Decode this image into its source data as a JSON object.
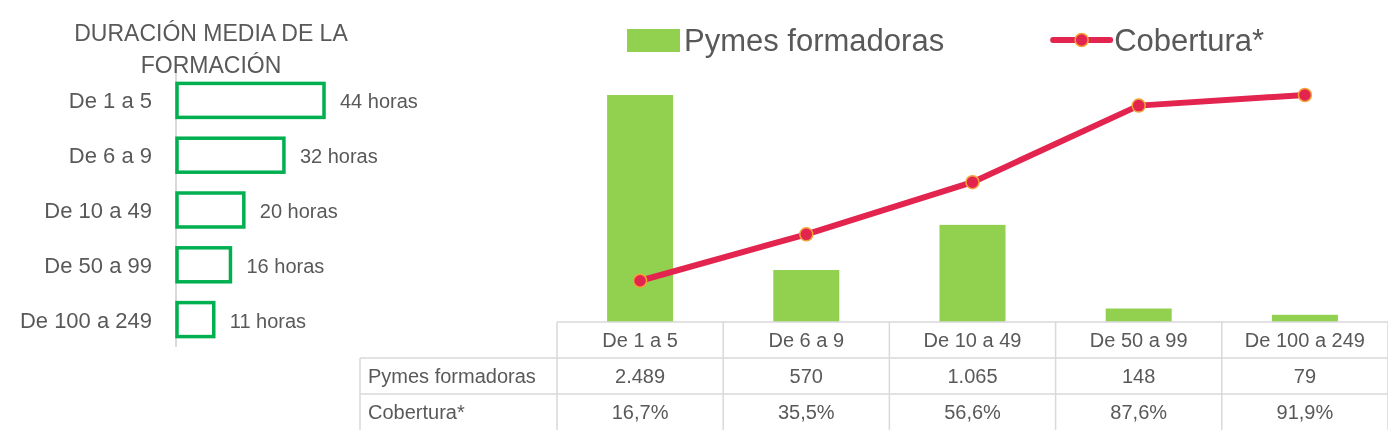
{
  "chart_data": [
    {
      "type": "bar",
      "orientation": "horizontal",
      "title": "DURACIÓN MEDIA DE LA FORMACIÓN",
      "categories": [
        "De 1 a 5",
        "De 6 a 9",
        "De 10 a 49",
        "De 50 a 99",
        "De 100 a 249"
      ],
      "values": [
        44,
        32,
        20,
        16,
        11
      ],
      "value_labels": [
        "44 horas",
        "32 horas",
        "20 horas",
        "16 horas",
        "11 horas"
      ],
      "color": "#00b050"
    },
    {
      "type": "bar",
      "categories": [
        "De 1 a 5",
        "De 6 a 9",
        "De 10 a 49",
        "De 50 a 99",
        "De 100 a 249"
      ],
      "series": [
        {
          "name": "Pymes formadoras",
          "type": "bar",
          "color": "#92d050",
          "values": [
            2489,
            570,
            1065,
            148,
            79
          ],
          "value_labels": [
            "2.489",
            "570",
            "1.065",
            "148",
            "79"
          ]
        },
        {
          "name": "Cobertura*",
          "type": "line",
          "axis": "y2",
          "color": "#e3244f",
          "marker": "circle",
          "values": [
            16.7,
            35.5,
            56.6,
            87.6,
            91.9
          ],
          "value_labels": [
            "16,7%",
            "35,5%",
            "56,6%",
            "87,6%",
            "91,9%"
          ]
        }
      ],
      "tick_labels": "x",
      "legend": "top"
    }
  ]
}
